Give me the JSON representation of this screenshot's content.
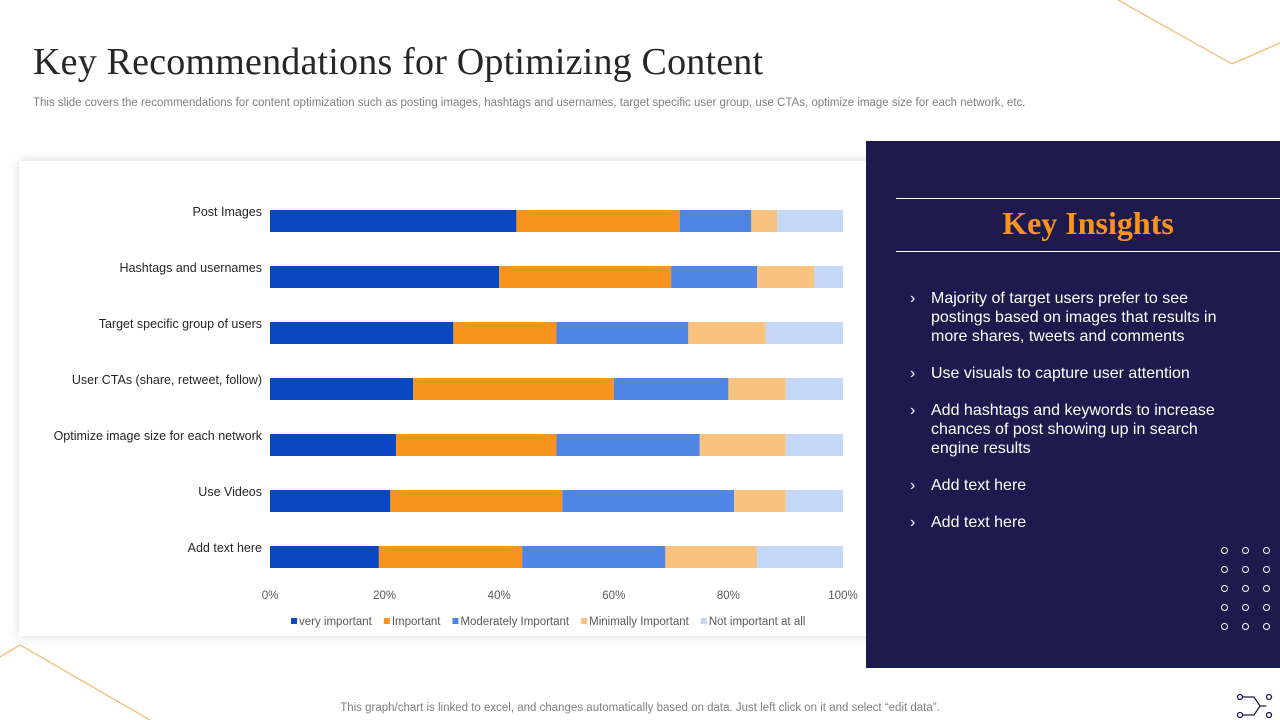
{
  "slide": {
    "title": "Key Recommendations for Optimizing Content",
    "subtitle": "This slide covers the recommendations for content optimization such as posting images, hashtags and usernames, target specific user group, use CTAs, optimize image size for each network, etc.",
    "footer_note": "This graph/chart is linked to excel, and changes automatically based on data. Just left click on it and select “edit data”."
  },
  "insights": {
    "title": "Key Insights",
    "items": [
      "Majority of target users prefer to see postings based on images that results in more shares, tweets and comments",
      "Use visuals to capture user attention",
      "Add hashtags and keywords to increase chances of post showing up in search engine results",
      "Add text here",
      "Add text here"
    ],
    "bullet_icon": "chevron-right-icon"
  },
  "colors": {
    "very_important": "#0a47c2",
    "important": "#f7941d",
    "moderately_important": "#4f86e6",
    "minimally_important": "#f9c27f",
    "not_important": "#c5d7f7",
    "panel": "#1f1a4d",
    "accent": "#f7941d"
  },
  "chart_data": {
    "type": "bar",
    "orientation": "horizontal",
    "stacked": "percent",
    "categories": [
      "Post Images",
      "Hashtags and usernames",
      "Target  specific group of users",
      "User CTAs (share,  retweet,  follow)",
      "Optimize image size for each network",
      "Use Videos",
      "Add text here"
    ],
    "series": [
      {
        "name": "very important",
        "values": [
          43,
          40,
          32,
          25,
          22,
          21,
          19
        ]
      },
      {
        "name": "Important",
        "values": [
          28.5,
          30,
          18,
          35,
          28,
          30,
          25
        ]
      },
      {
        "name": "Moderately Important",
        "values": [
          12.5,
          15,
          23,
          20,
          25,
          30,
          25
        ]
      },
      {
        "name": "Minimally Important",
        "values": [
          4.5,
          10,
          13.5,
          10,
          15,
          9,
          16
        ]
      },
      {
        "name": "Not important at all",
        "values": [
          11.5,
          5,
          13.5,
          10,
          10,
          10,
          15
        ]
      }
    ],
    "xlim": [
      0,
      100
    ],
    "x_ticks": [
      "0%",
      "20%",
      "40%",
      "60%",
      "80%",
      "100%"
    ],
    "legend_position": "bottom",
    "grid": false
  }
}
